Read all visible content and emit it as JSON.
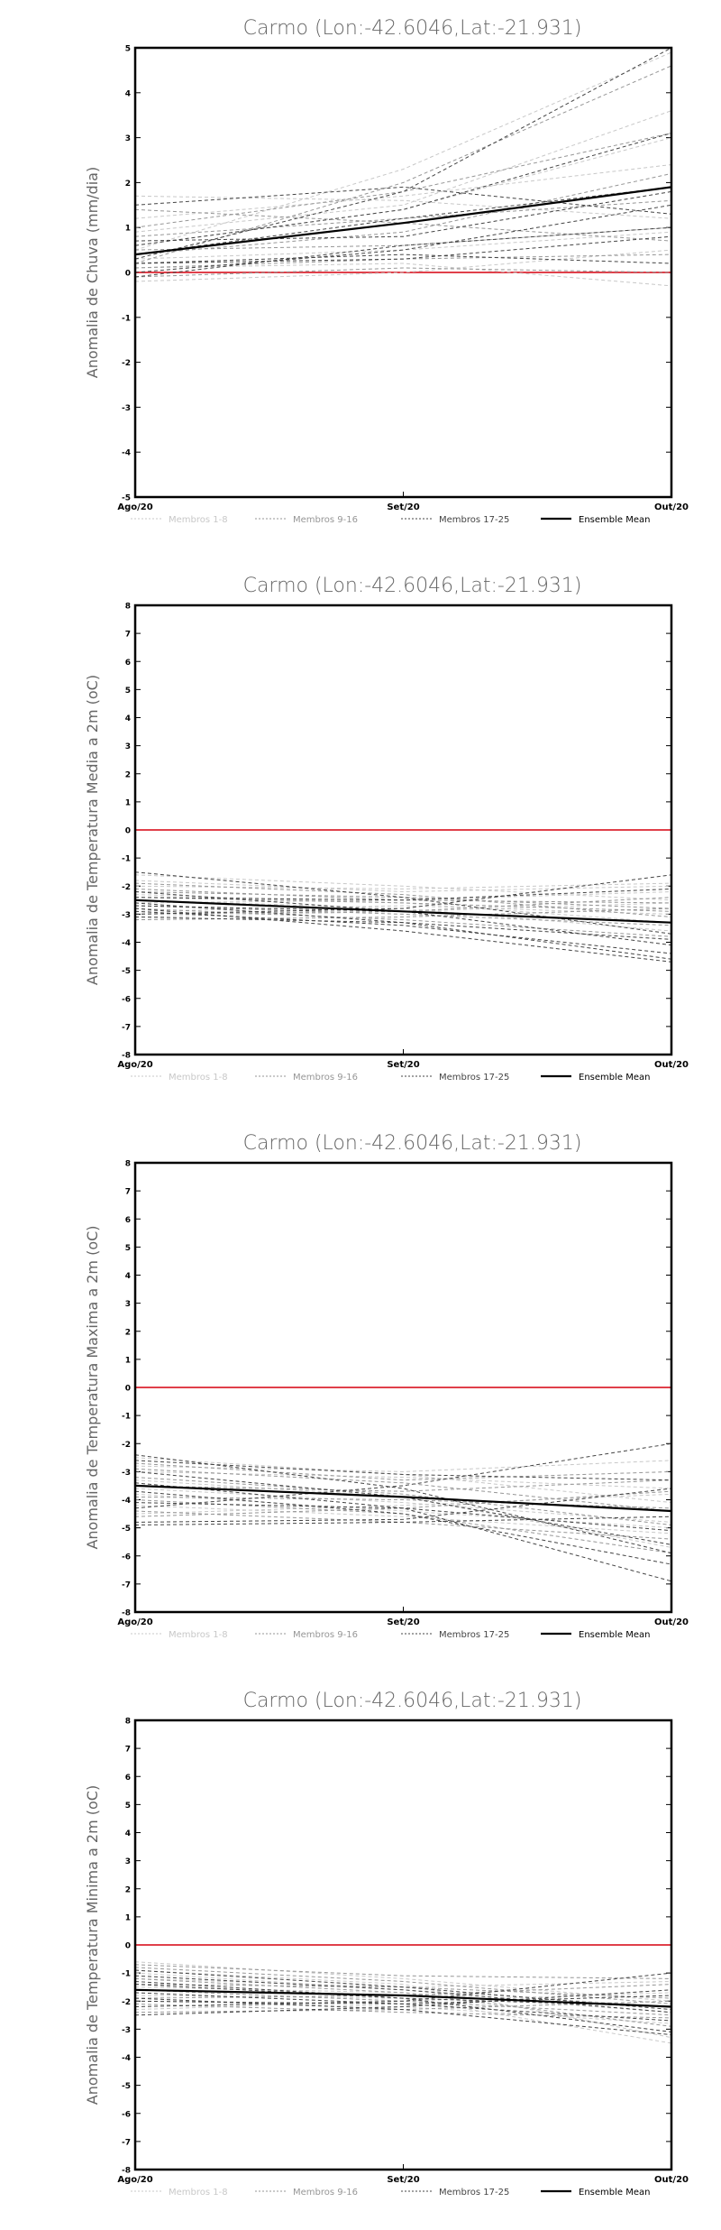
{
  "legend_labels": [
    "Membros 1-8",
    "Membros 9-16",
    "Membros 17-25",
    "Ensemble Mean"
  ],
  "colors": {
    "zero_line": "#e0404a",
    "membros_1_8": "#c8c8c8",
    "membros_9_16": "#969696",
    "membros_17_25": "#444444",
    "ensemble_mean": "#000000"
  },
  "chart_data": [
    {
      "type": "line",
      "title": "Carmo (Lon:-42.6046,Lat:-21.931)",
      "ylabel": "Anomalia de Chuva (mm/dia)",
      "x": [
        "Ago/20",
        "Set/20",
        "Out/20"
      ],
      "ylim": [
        -5,
        5
      ],
      "yticks": [
        -5,
        -4,
        -3,
        -2,
        -1,
        0,
        1,
        2,
        3,
        4,
        5
      ],
      "series": [
        {
          "group": "membros_1_8",
          "values": [
            0.9,
            1.5,
            3.6
          ]
        },
        {
          "group": "membros_1_8",
          "values": [
            0.5,
            2.3,
            4.9
          ]
        },
        {
          "group": "membros_1_8",
          "values": [
            1.2,
            1.7,
            2.4
          ]
        },
        {
          "group": "membros_1_8",
          "values": [
            0.1,
            0.2,
            -0.3
          ]
        },
        {
          "group": "membros_1_8",
          "values": [
            0.6,
            1.4,
            3.0
          ]
        },
        {
          "group": "membros_1_8",
          "values": [
            1.7,
            1.6,
            1.2
          ]
        },
        {
          "group": "membros_1_8",
          "values": [
            -0.2,
            0.0,
            0.5
          ]
        },
        {
          "group": "membros_1_8",
          "values": [
            0.3,
            0.5,
            0.9
          ]
        },
        {
          "group": "membros_9_16",
          "values": [
            0.2,
            2.0,
            4.6
          ]
        },
        {
          "group": "membros_9_16",
          "values": [
            0.8,
            1.2,
            1.6
          ]
        },
        {
          "group": "membros_9_16",
          "values": [
            1.0,
            1.8,
            3.1
          ]
        },
        {
          "group": "membros_9_16",
          "values": [
            0.1,
            0.3,
            0.4
          ]
        },
        {
          "group": "membros_9_16",
          "values": [
            1.4,
            1.1,
            0.7
          ]
        },
        {
          "group": "membros_9_16",
          "values": [
            0.4,
            0.9,
            2.2
          ]
        },
        {
          "group": "membros_9_16",
          "values": [
            -0.1,
            0.1,
            0.0
          ]
        },
        {
          "group": "membros_9_16",
          "values": [
            0.5,
            0.6,
            1.0
          ]
        },
        {
          "group": "membros_17_25",
          "values": [
            0.3,
            1.8,
            5.0
          ]
        },
        {
          "group": "membros_17_25",
          "values": [
            0.2,
            0.4,
            0.2
          ]
        },
        {
          "group": "membros_17_25",
          "values": [
            0.6,
            1.4,
            3.1
          ]
        },
        {
          "group": "membros_17_25",
          "values": [
            0.0,
            0.5,
            1.5
          ]
        },
        {
          "group": "membros_17_25",
          "values": [
            1.5,
            1.9,
            1.3
          ]
        },
        {
          "group": "membros_17_25",
          "values": [
            0.7,
            0.8,
            1.8
          ]
        },
        {
          "group": "membros_17_25",
          "values": [
            0.4,
            1.2,
            1.9
          ]
        },
        {
          "group": "membros_17_25",
          "values": [
            0.2,
            0.3,
            0.8
          ]
        },
        {
          "group": "membros_17_25",
          "values": [
            -0.1,
            0.6,
            1.0
          ]
        },
        {
          "group": "ensemble_mean",
          "name": "Ensemble Mean",
          "values": [
            0.4,
            1.1,
            1.9
          ]
        }
      ]
    },
    {
      "type": "line",
      "title": "Carmo (Lon:-42.6046,Lat:-21.931)",
      "ylabel": "Anomalia de Temperatura Media a 2m (oC)",
      "x": [
        "Ago/20",
        "Set/20",
        "Out/20"
      ],
      "ylim": [
        -8,
        8
      ],
      "yticks": [
        -8,
        -7,
        -6,
        -5,
        -4,
        -3,
        -2,
        -1,
        0,
        1,
        2,
        3,
        4,
        5,
        6,
        7,
        8
      ],
      "series": [
        {
          "group": "membros_1_8",
          "values": [
            -2.0,
            -2.1,
            -1.9
          ]
        },
        {
          "group": "membros_1_8",
          "values": [
            -2.6,
            -2.5,
            -2.2
          ]
        },
        {
          "group": "membros_1_8",
          "values": [
            -1.6,
            -2.0,
            -2.5
          ]
        },
        {
          "group": "membros_1_8",
          "values": [
            -2.9,
            -2.7,
            -3.0
          ]
        },
        {
          "group": "membros_1_8",
          "values": [
            -2.3,
            -2.6,
            -3.3
          ]
        },
        {
          "group": "membros_1_8",
          "values": [
            -3.1,
            -2.9,
            -2.6
          ]
        },
        {
          "group": "membros_1_8",
          "values": [
            -2.5,
            -2.8,
            -3.6
          ]
        },
        {
          "group": "membros_1_8",
          "values": [
            -1.8,
            -2.2,
            -2.0
          ]
        },
        {
          "group": "membros_9_16",
          "values": [
            -2.2,
            -2.4,
            -2.8
          ]
        },
        {
          "group": "membros_9_16",
          "values": [
            -2.7,
            -3.0,
            -3.4
          ]
        },
        {
          "group": "membros_9_16",
          "values": [
            -3.0,
            -2.9,
            -2.4
          ]
        },
        {
          "group": "membros_9_16",
          "values": [
            -2.4,
            -2.6,
            -2.9
          ]
        },
        {
          "group": "membros_9_16",
          "values": [
            -1.9,
            -2.3,
            -3.1
          ]
        },
        {
          "group": "membros_9_16",
          "values": [
            -2.8,
            -3.2,
            -3.8
          ]
        },
        {
          "group": "membros_9_16",
          "values": [
            -3.2,
            -3.1,
            -2.8
          ]
        },
        {
          "group": "membros_9_16",
          "values": [
            -2.1,
            -2.5,
            -2.6
          ]
        },
        {
          "group": "membros_17_25",
          "values": [
            -2.6,
            -3.3,
            -4.6
          ]
        },
        {
          "group": "membros_17_25",
          "values": [
            -2.9,
            -3.4,
            -4.4
          ]
        },
        {
          "group": "membros_17_25",
          "values": [
            -2.2,
            -2.9,
            -4.1
          ]
        },
        {
          "group": "membros_17_25",
          "values": [
            -3.0,
            -2.8,
            -1.6
          ]
        },
        {
          "group": "membros_17_25",
          "values": [
            -2.4,
            -2.5,
            -2.1
          ]
        },
        {
          "group": "membros_17_25",
          "values": [
            -3.1,
            -3.3,
            -3.9
          ]
        },
        {
          "group": "membros_17_25",
          "values": [
            -2.7,
            -2.9,
            -3.3
          ]
        },
        {
          "group": "membros_17_25",
          "values": [
            -1.5,
            -2.4,
            -3.7
          ]
        },
        {
          "group": "membros_17_25",
          "values": [
            -2.8,
            -3.6,
            -4.7
          ]
        },
        {
          "group": "ensemble_mean",
          "name": "Ensemble Mean",
          "values": [
            -2.5,
            -2.9,
            -3.3
          ]
        }
      ]
    },
    {
      "type": "line",
      "title": "Carmo (Lon:-42.6046,Lat:-21.931)",
      "ylabel": "Anomalia de Temperatura Maxima a 2m (oC)",
      "x": [
        "Ago/20",
        "Set/20",
        "Out/20"
      ],
      "ylim": [
        -8,
        8
      ],
      "yticks": [
        -8,
        -7,
        -6,
        -5,
        -4,
        -3,
        -2,
        -1,
        0,
        1,
        2,
        3,
        4,
        5,
        6,
        7,
        8
      ],
      "series": [
        {
          "group": "membros_1_8",
          "values": [
            -3.0,
            -3.2,
            -3.6
          ]
        },
        {
          "group": "membros_1_8",
          "values": [
            -3.6,
            -4.1,
            -4.8
          ]
        },
        {
          "group": "membros_1_8",
          "values": [
            -2.8,
            -3.0,
            -2.6
          ]
        },
        {
          "group": "membros_1_8",
          "values": [
            -4.2,
            -4.6,
            -5.2
          ]
        },
        {
          "group": "membros_1_8",
          "values": [
            -3.3,
            -3.9,
            -5.7
          ]
        },
        {
          "group": "membros_1_8",
          "values": [
            -4.5,
            -4.2,
            -3.8
          ]
        },
        {
          "group": "membros_1_8",
          "values": [
            -3.8,
            -4.4,
            -5.0
          ]
        },
        {
          "group": "membros_1_8",
          "values": [
            -2.5,
            -3.1,
            -4.1
          ]
        },
        {
          "group": "membros_9_16",
          "values": [
            -3.5,
            -3.7,
            -3.3
          ]
        },
        {
          "group": "membros_9_16",
          "values": [
            -4.0,
            -4.5,
            -5.9
          ]
        },
        {
          "group": "membros_9_16",
          "values": [
            -2.9,
            -3.4,
            -4.4
          ]
        },
        {
          "group": "membros_9_16",
          "values": [
            -4.6,
            -4.3,
            -3.7
          ]
        },
        {
          "group": "membros_9_16",
          "values": [
            -3.2,
            -3.8,
            -4.9
          ]
        },
        {
          "group": "membros_9_16",
          "values": [
            -3.9,
            -4.0,
            -4.3
          ]
        },
        {
          "group": "membros_9_16",
          "values": [
            -4.4,
            -4.8,
            -5.4
          ]
        },
        {
          "group": "membros_9_16",
          "values": [
            -2.7,
            -3.3,
            -3.0
          ]
        },
        {
          "group": "membros_17_25",
          "values": [
            -3.4,
            -4.3,
            -6.9
          ]
        },
        {
          "group": "membros_17_25",
          "values": [
            -4.8,
            -4.7,
            -3.6
          ]
        },
        {
          "group": "membros_17_25",
          "values": [
            -2.4,
            -3.6,
            -5.9
          ]
        },
        {
          "group": "membros_17_25",
          "values": [
            -4.3,
            -3.5,
            -2.0
          ]
        },
        {
          "group": "membros_17_25",
          "values": [
            -2.6,
            -3.1,
            -3.3
          ]
        },
        {
          "group": "membros_17_25",
          "values": [
            -3.7,
            -4.5,
            -6.3
          ]
        },
        {
          "group": "membros_17_25",
          "values": [
            -4.1,
            -4.3,
            -5.1
          ]
        },
        {
          "group": "membros_17_25",
          "values": [
            -3.0,
            -3.9,
            -5.6
          ]
        },
        {
          "group": "membros_17_25",
          "values": [
            -4.9,
            -4.8,
            -4.6
          ]
        },
        {
          "group": "ensemble_mean",
          "name": "Ensemble Mean",
          "values": [
            -3.5,
            -3.9,
            -4.4
          ]
        }
      ]
    },
    {
      "type": "line",
      "title": "Carmo (Lon:-42.6046,Lat:-21.931)",
      "ylabel": "Anomalia de Temperatura Minima a 2m (oC)",
      "x": [
        "Ago/20",
        "Set/20",
        "Out/20"
      ],
      "ylim": [
        -8,
        8
      ],
      "yticks": [
        -8,
        -7,
        -6,
        -5,
        -4,
        -3,
        -2,
        -1,
        0,
        1,
        2,
        3,
        4,
        5,
        6,
        7,
        8
      ],
      "series": [
        {
          "group": "membros_1_8",
          "values": [
            -0.6,
            -1.2,
            -2.0
          ]
        },
        {
          "group": "membros_1_8",
          "values": [
            -1.2,
            -1.5,
            -1.3
          ]
        },
        {
          "group": "membros_1_8",
          "values": [
            -2.0,
            -2.2,
            -2.8
          ]
        },
        {
          "group": "membros_1_8",
          "values": [
            -1.5,
            -1.7,
            -2.4
          ]
        },
        {
          "group": "membros_1_8",
          "values": [
            -0.9,
            -1.4,
            -3.3
          ]
        },
        {
          "group": "membros_1_8",
          "values": [
            -2.3,
            -2.0,
            -1.7
          ]
        },
        {
          "group": "membros_1_8",
          "values": [
            -1.0,
            -1.6,
            -2.2
          ]
        },
        {
          "group": "membros_1_8",
          "values": [
            -1.8,
            -1.9,
            -3.5
          ]
        },
        {
          "group": "membros_9_16",
          "values": [
            -1.4,
            -1.5,
            -1.9
          ]
        },
        {
          "group": "membros_9_16",
          "values": [
            -2.1,
            -2.4,
            -2.6
          ]
        },
        {
          "group": "membros_9_16",
          "values": [
            -0.8,
            -1.3,
            -2.1
          ]
        },
        {
          "group": "membros_9_16",
          "values": [
            -1.9,
            -1.8,
            -1.4
          ]
        },
        {
          "group": "membros_9_16",
          "values": [
            -1.2,
            -1.7,
            -2.9
          ]
        },
        {
          "group": "membros_9_16",
          "values": [
            -2.4,
            -2.3,
            -2.0
          ]
        },
        {
          "group": "membros_9_16",
          "values": [
            -1.6,
            -2.0,
            -2.5
          ]
        },
        {
          "group": "membros_9_16",
          "values": [
            -0.7,
            -1.1,
            -1.2
          ]
        },
        {
          "group": "membros_17_25",
          "values": [
            -1.3,
            -1.9,
            -3.1
          ]
        },
        {
          "group": "membros_17_25",
          "values": [
            -2.2,
            -2.0,
            -1.0
          ]
        },
        {
          "group": "membros_17_25",
          "values": [
            -0.9,
            -1.5,
            -2.3
          ]
        },
        {
          "group": "membros_17_25",
          "values": [
            -1.7,
            -2.1,
            -2.7
          ]
        },
        {
          "group": "membros_17_25",
          "values": [
            -2.5,
            -2.2,
            -1.6
          ]
        },
        {
          "group": "membros_17_25",
          "values": [
            -1.1,
            -1.6,
            -2.4
          ]
        },
        {
          "group": "membros_17_25",
          "values": [
            -1.9,
            -2.3,
            -3.2
          ]
        },
        {
          "group": "membros_17_25",
          "values": [
            -1.4,
            -1.9,
            -2.2
          ]
        },
        {
          "group": "membros_17_25",
          "values": [
            -2.0,
            -2.1,
            -1.8
          ]
        },
        {
          "group": "ensemble_mean",
          "name": "Ensemble Mean",
          "values": [
            -1.6,
            -1.8,
            -2.2
          ]
        }
      ]
    }
  ]
}
